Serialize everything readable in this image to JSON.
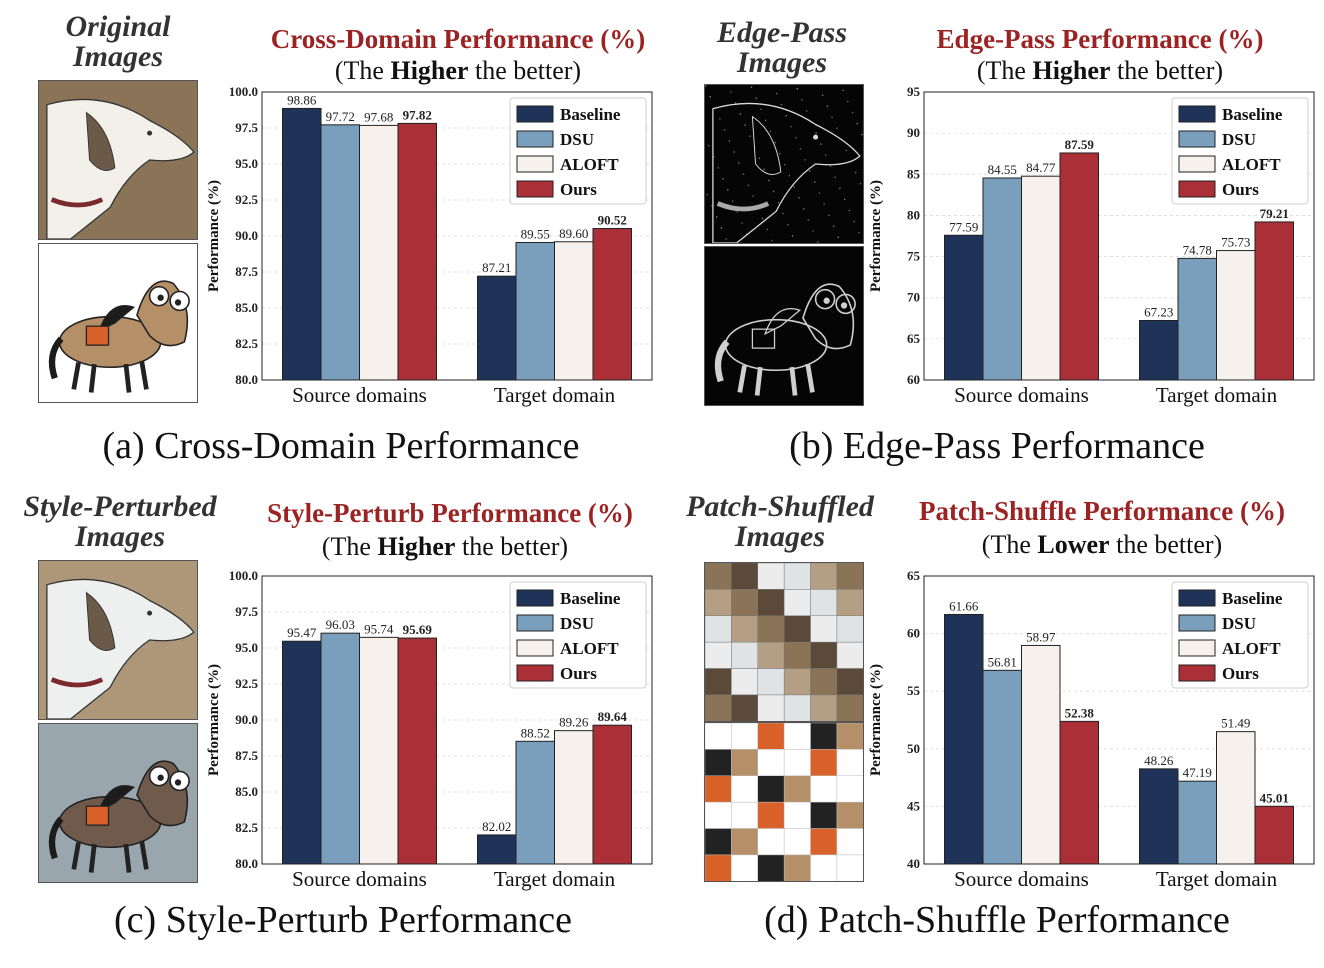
{
  "colors": {
    "baseline": "#1f3358",
    "dsu": "#7a9fbc",
    "aloft": "#f6f1ec",
    "ours": "#aa2f36",
    "title_red": "#9b2323"
  },
  "legend": [
    "Baseline",
    "DSU",
    "ALOFT",
    "Ours"
  ],
  "panels": [
    {
      "image_title": [
        "Original",
        "Images"
      ],
      "chart_title": "Cross-Domain Performance (%)",
      "subtitle_pre": "(The ",
      "subtitle_bold": "Higher",
      "subtitle_post": " the better)",
      "caption": "(a) Cross-Domain Performance",
      "image_style": "original"
    },
    {
      "image_title": [
        "Edge-Pass",
        "Images"
      ],
      "chart_title": "Edge-Pass Performance (%)",
      "subtitle_pre": "(The ",
      "subtitle_bold": "Higher",
      "subtitle_post": " the better)",
      "caption": "(b) Edge-Pass Performance",
      "image_style": "edge"
    },
    {
      "image_title": [
        "Style-Perturbed",
        "Images"
      ],
      "chart_title": "Style-Perturb Performance (%)",
      "subtitle_pre": "(The ",
      "subtitle_bold": "Higher",
      "subtitle_post": " the better)",
      "caption": "(c) Style-Perturb Performance",
      "image_style": "style"
    },
    {
      "image_title": [
        "Patch-Shuffled",
        "Images"
      ],
      "chart_title": "Patch-Shuffle Performance (%)",
      "subtitle_pre": "(The ",
      "subtitle_bold": "Lower",
      "subtitle_post": " the better)",
      "caption": "(d) Patch-Shuffle Performance",
      "image_style": "shuffle"
    }
  ],
  "chart_data": [
    {
      "type": "bar",
      "title": "Cross-Domain Performance (%)",
      "ylabel": "Performance (%)",
      "categories": [
        "Source domains",
        "Target domain"
      ],
      "ylim": [
        80.0,
        100.0
      ],
      "yticks": [
        "80.0",
        "82.5",
        "85.0",
        "87.5",
        "90.0",
        "92.5",
        "95.0",
        "97.5",
        "100.0"
      ],
      "series": [
        {
          "name": "Baseline",
          "values": [
            98.86,
            87.21
          ],
          "labels": [
            "98.86",
            "87.21"
          ]
        },
        {
          "name": "DSU",
          "values": [
            97.72,
            89.55
          ],
          "labels": [
            "97.72",
            "89.55"
          ]
        },
        {
          "name": "ALOFT",
          "values": [
            97.68,
            89.6
          ],
          "labels": [
            "97.68",
            "89.60"
          ]
        },
        {
          "name": "Ours",
          "values": [
            97.82,
            90.52
          ],
          "labels": [
            "97.82",
            "90.52"
          ]
        }
      ],
      "legend_position": "top-right"
    },
    {
      "type": "bar",
      "title": "Edge-Pass Performance (%)",
      "ylabel": "Performance (%)",
      "categories": [
        "Source domains",
        "Target domain"
      ],
      "ylim": [
        60,
        95
      ],
      "yticks": [
        "60",
        "65",
        "70",
        "75",
        "80",
        "85",
        "90",
        "95"
      ],
      "series": [
        {
          "name": "Baseline",
          "values": [
            77.59,
            67.23
          ],
          "labels": [
            "77.59",
            "67.23"
          ]
        },
        {
          "name": "DSU",
          "values": [
            84.55,
            74.78
          ],
          "labels": [
            "84.55",
            "74.78"
          ]
        },
        {
          "name": "ALOFT",
          "values": [
            84.77,
            75.73
          ],
          "labels": [
            "84.77",
            "75.73"
          ]
        },
        {
          "name": "Ours",
          "values": [
            87.59,
            79.21
          ],
          "labels": [
            "87.59",
            "79.21"
          ]
        }
      ],
      "legend_position": "top-right"
    },
    {
      "type": "bar",
      "title": "Style-Perturb Performance (%)",
      "ylabel": "Performance (%)",
      "categories": [
        "Source domains",
        "Target domain"
      ],
      "ylim": [
        80.0,
        100.0
      ],
      "yticks": [
        "80.0",
        "82.5",
        "85.0",
        "87.5",
        "90.0",
        "92.5",
        "95.0",
        "97.5",
        "100.0"
      ],
      "series": [
        {
          "name": "Baseline",
          "values": [
            95.47,
            82.02
          ],
          "labels": [
            "95.47",
            "82.02"
          ]
        },
        {
          "name": "DSU",
          "values": [
            96.03,
            88.52
          ],
          "labels": [
            "96.03",
            "88.52"
          ]
        },
        {
          "name": "ALOFT",
          "values": [
            95.74,
            89.26
          ],
          "labels": [
            "95.74",
            "89.26"
          ]
        },
        {
          "name": "Ours",
          "values": [
            95.69,
            89.64
          ],
          "labels": [
            "95.69",
            "89.64"
          ]
        }
      ],
      "legend_position": "top-right"
    },
    {
      "type": "bar",
      "title": "Patch-Shuffle Performance (%)",
      "ylabel": "Performance (%)",
      "categories": [
        "Source domains",
        "Target domain"
      ],
      "ylim": [
        40,
        65
      ],
      "yticks": [
        "40",
        "45",
        "50",
        "55",
        "60",
        "65"
      ],
      "series": [
        {
          "name": "Baseline",
          "values": [
            61.66,
            48.26
          ],
          "labels": [
            "61.66",
            "48.26"
          ]
        },
        {
          "name": "DSU",
          "values": [
            56.81,
            47.19
          ],
          "labels": [
            "56.81",
            "47.19"
          ]
        },
        {
          "name": "ALOFT",
          "values": [
            58.97,
            51.49
          ],
          "labels": [
            "58.97",
            "51.49"
          ]
        },
        {
          "name": "Ours",
          "values": [
            52.38,
            45.01
          ],
          "labels": [
            "52.38",
            "45.01"
          ]
        }
      ],
      "legend_position": "top-right"
    }
  ]
}
